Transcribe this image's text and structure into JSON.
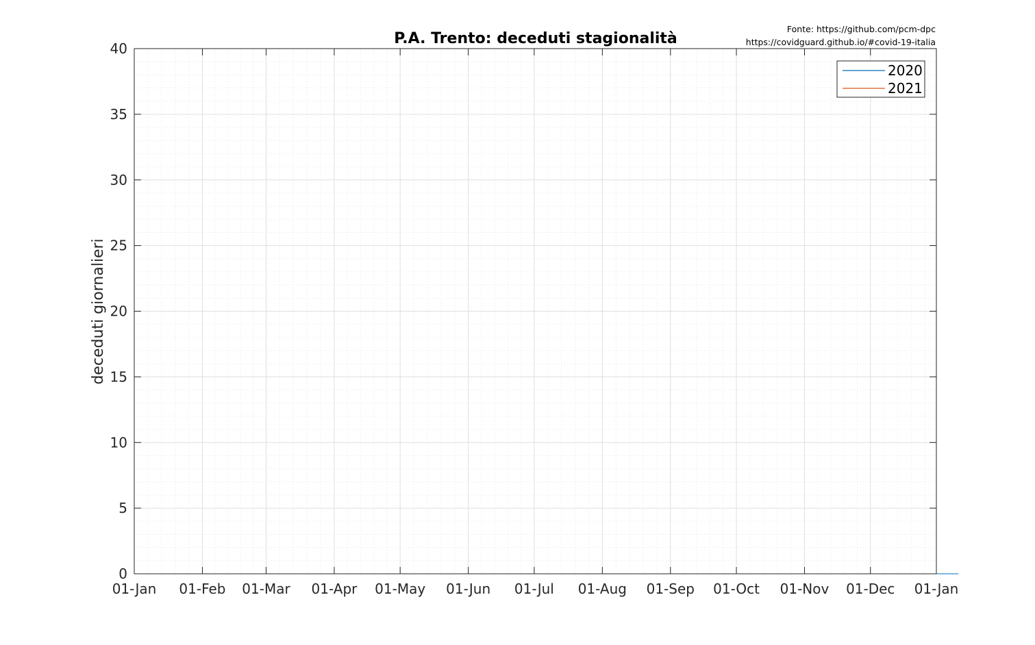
{
  "chart_data": {
    "type": "line",
    "title": "P.A. Trento: deceduti stagionalità",
    "source_lines": [
      "Fonte: https://github.com/pcm-dpc",
      "https://covidguard.github.io/#covid-19-italia"
    ],
    "xlabel": "",
    "ylabel": "deceduti giornalieri",
    "xlim": [
      0,
      365
    ],
    "ylim": [
      0,
      40
    ],
    "x_ticks": [
      {
        "day": 0,
        "label": "01-Jan"
      },
      {
        "day": 31,
        "label": "01-Feb"
      },
      {
        "day": 60,
        "label": "01-Mar"
      },
      {
        "day": 91,
        "label": "01-Apr"
      },
      {
        "day": 121,
        "label": "01-May"
      },
      {
        "day": 152,
        "label": "01-Jun"
      },
      {
        "day": 182,
        "label": "01-Jul"
      },
      {
        "day": 213,
        "label": "01-Aug"
      },
      {
        "day": 244,
        "label": "01-Sep"
      },
      {
        "day": 274,
        "label": "01-Oct"
      },
      {
        "day": 305,
        "label": "01-Nov"
      },
      {
        "day": 335,
        "label": "01-Dec"
      },
      {
        "day": 366,
        "label": "01-Jan"
      }
    ],
    "y_ticks": [
      0,
      5,
      10,
      15,
      20,
      25,
      30,
      35,
      40
    ],
    "grid": true,
    "minor_grid": true,
    "legend": {
      "position": "top-right",
      "entries": [
        "2020",
        "2021"
      ]
    },
    "colors": {
      "2020": "#0072BD",
      "2021": "#D95319",
      "axis": "#262626",
      "grid": "#dfdfdf"
    },
    "series": [
      {
        "name": "2020",
        "start_day": 60,
        "values": [
          0,
          0,
          0,
          0,
          0,
          0,
          0,
          0,
          0,
          0,
          0,
          0,
          0,
          0,
          0,
          0,
          0,
          0,
          0,
          0,
          0,
          0,
          0,
          0,
          0,
          0,
          0,
          0,
          0,
          0,
          0,
          0,
          0,
          0,
          0,
          0,
          0,
          0,
          0,
          0,
          0,
          0,
          0,
          0,
          0,
          0,
          0,
          0,
          0,
          0,
          0,
          0,
          0,
          0,
          0,
          0,
          0,
          0,
          0,
          0,
          0,
          0,
          0,
          0,
          0,
          0,
          0,
          0,
          0,
          0,
          0,
          0,
          0,
          0,
          0,
          0,
          0,
          0,
          0,
          0,
          0,
          0,
          0,
          0,
          0,
          0,
          0,
          0,
          0,
          0,
          0,
          0,
          0,
          0,
          0,
          0,
          0,
          0,
          0,
          0,
          0,
          0,
          0,
          0,
          0,
          0,
          0,
          0,
          0,
          0,
          0,
          0,
          0,
          0,
          0,
          0,
          0,
          0,
          0,
          0,
          0,
          0,
          0,
          0,
          0,
          0,
          0,
          0,
          0,
          0,
          0,
          0,
          0,
          0,
          0,
          0,
          0,
          0,
          0,
          0,
          0,
          0,
          0,
          0,
          0,
          0,
          0,
          0,
          0,
          0,
          0,
          0,
          0,
          0,
          0,
          0,
          0,
          0,
          0,
          0,
          0,
          0,
          0,
          0,
          0,
          0,
          0,
          0,
          0,
          0,
          0,
          0,
          0,
          0,
          0,
          0,
          0,
          0,
          0,
          0,
          0,
          0,
          0,
          0,
          0,
          0,
          0,
          0,
          0,
          0,
          0,
          0,
          0,
          0,
          0,
          0,
          0,
          0,
          0,
          0,
          0,
          0,
          0,
          0,
          0,
          0,
          0,
          0,
          0,
          0,
          0,
          0,
          0,
          0,
          0,
          0,
          0,
          0,
          0,
          0,
          0,
          0,
          0,
          0,
          0,
          0,
          0,
          0,
          0,
          0,
          0,
          0,
          0,
          0,
          0,
          0,
          0,
          0,
          0,
          0,
          0,
          0,
          0,
          0,
          0,
          0,
          0,
          0,
          0,
          0,
          0,
          0,
          0,
          0,
          0,
          0,
          0,
          0,
          0,
          0,
          0,
          0,
          0,
          0,
          0,
          0,
          0,
          0,
          0,
          0,
          0,
          0,
          0,
          0,
          0,
          0,
          0,
          0,
          0,
          0,
          0,
          0,
          0,
          0,
          0,
          0,
          0,
          0,
          0,
          0,
          0,
          0,
          0,
          0,
          0,
          0,
          0,
          0,
          0,
          0,
          0,
          0,
          0,
          0,
          0,
          0,
          0,
          0,
          0,
          0,
          0,
          0,
          0,
          0,
          0,
          0
        ]
      },
      {
        "name": "2021",
        "start_day": 0,
        "values": []
      }
    ]
  }
}
